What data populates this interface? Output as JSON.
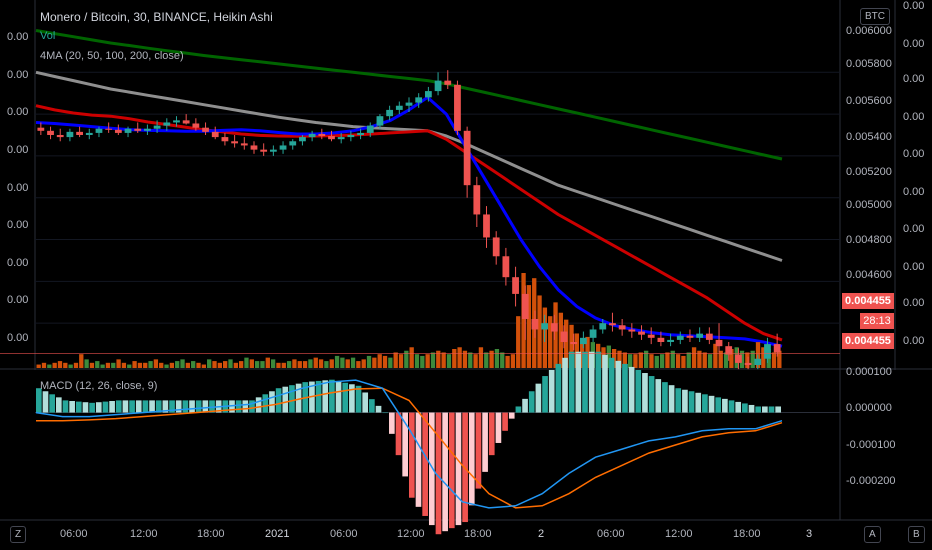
{
  "header": {
    "title": "Monero / Bitcoin, 30, BINANCE, Heikin Ashi",
    "vol_label": "Vol",
    "ma_label": "4MA (20, 50, 100, 200, close)",
    "macd_label": "MACD (12, 26, close, 9)",
    "currency_badge": "BTC"
  },
  "left_axis": {
    "ticks": [
      "0.00",
      "0.00",
      "0.00",
      "0.00",
      "0.00",
      "0.00",
      "0.00",
      "0.00",
      "0.00"
    ]
  },
  "far_right_axis": {
    "ticks": [
      "0.00",
      "0.00",
      "0.00",
      "0.00",
      "0.00",
      "0.00",
      "0.00",
      "0.00",
      "0.00",
      "0.00"
    ]
  },
  "price_axis": {
    "ticks": [
      "0.006000",
      "0.005800",
      "0.005600",
      "0.005400",
      "0.005200",
      "0.005000",
      "0.004800",
      "0.004600"
    ],
    "last_price": "0.004455",
    "countdown": "28:13",
    "bid_price": "0.004455"
  },
  "macd_axis": {
    "ticks": [
      "0.000100",
      "0.000000",
      "-0.000100",
      "-0.000200"
    ]
  },
  "time_axis": {
    "ticks": [
      "06:00",
      "12:00",
      "18:00",
      "2021",
      "06:00",
      "12:00",
      "18:00",
      "2",
      "06:00",
      "12:00",
      "18:00",
      "3"
    ]
  },
  "bottom_buttons": {
    "left": "Z",
    "mid": "A",
    "right": "B"
  },
  "colors": {
    "up": "#26a69a",
    "down": "#ef5350",
    "ma20": "#0000ff",
    "ma50": "#cc0000",
    "ma100": "#8f8f8f",
    "ma200": "#006400",
    "macd_line": "#2196f3",
    "signal_line": "#ff6d00",
    "vol_up": "#3c8a3c",
    "vol_down": "#d2500a"
  },
  "chart_data": {
    "type": "candlestick",
    "candles": [
      {
        "o": 0.005535,
        "h": 0.00556,
        "l": 0.0055,
        "c": 0.00552
      },
      {
        "o": 0.00552,
        "h": 0.00554,
        "l": 0.00548,
        "c": 0.0055
      },
      {
        "o": 0.0055,
        "h": 0.00553,
        "l": 0.00547,
        "c": 0.00549
      },
      {
        "o": 0.00549,
        "h": 0.00553,
        "l": 0.00547,
        "c": 0.005515
      },
      {
        "o": 0.005515,
        "h": 0.00554,
        "l": 0.00549,
        "c": 0.0055
      },
      {
        "o": 0.0055,
        "h": 0.00553,
        "l": 0.00548,
        "c": 0.00551
      },
      {
        "o": 0.00551,
        "h": 0.00554,
        "l": 0.00549,
        "c": 0.00553
      },
      {
        "o": 0.00553,
        "h": 0.00556,
        "l": 0.00551,
        "c": 0.005525
      },
      {
        "o": 0.005525,
        "h": 0.00555,
        "l": 0.0055,
        "c": 0.00551
      },
      {
        "o": 0.00551,
        "h": 0.00554,
        "l": 0.00549,
        "c": 0.00553
      },
      {
        "o": 0.00553,
        "h": 0.00556,
        "l": 0.00551,
        "c": 0.00552
      },
      {
        "o": 0.00552,
        "h": 0.00555,
        "l": 0.0055,
        "c": 0.00553
      },
      {
        "o": 0.00553,
        "h": 0.00557,
        "l": 0.00551,
        "c": 0.005545
      },
      {
        "o": 0.005545,
        "h": 0.00558,
        "l": 0.00552,
        "c": 0.00556
      },
      {
        "o": 0.00556,
        "h": 0.00559,
        "l": 0.00554,
        "c": 0.00557
      },
      {
        "o": 0.00557,
        "h": 0.0056,
        "l": 0.00555,
        "c": 0.005555
      },
      {
        "o": 0.005555,
        "h": 0.00558,
        "l": 0.00552,
        "c": 0.005535
      },
      {
        "o": 0.005535,
        "h": 0.00556,
        "l": 0.0055,
        "c": 0.005515
      },
      {
        "o": 0.005515,
        "h": 0.00554,
        "l": 0.00548,
        "c": 0.00549
      },
      {
        "o": 0.00549,
        "h": 0.00551,
        "l": 0.00545,
        "c": 0.00547
      },
      {
        "o": 0.00547,
        "h": 0.0055,
        "l": 0.00544,
        "c": 0.00546
      },
      {
        "o": 0.00546,
        "h": 0.00549,
        "l": 0.00543,
        "c": 0.00545
      },
      {
        "o": 0.00545,
        "h": 0.00547,
        "l": 0.00541,
        "c": 0.00543
      },
      {
        "o": 0.00543,
        "h": 0.00546,
        "l": 0.0054,
        "c": 0.00542
      },
      {
        "o": 0.00542,
        "h": 0.00545,
        "l": 0.0054,
        "c": 0.00543
      },
      {
        "o": 0.00543,
        "h": 0.00547,
        "l": 0.00541,
        "c": 0.00545
      },
      {
        "o": 0.00545,
        "h": 0.00548,
        "l": 0.00543,
        "c": 0.00547
      },
      {
        "o": 0.00547,
        "h": 0.0055,
        "l": 0.00545,
        "c": 0.00549
      },
      {
        "o": 0.00549,
        "h": 0.00552,
        "l": 0.00547,
        "c": 0.005505
      },
      {
        "o": 0.005505,
        "h": 0.00553,
        "l": 0.00548,
        "c": 0.005495
      },
      {
        "o": 0.005495,
        "h": 0.00552,
        "l": 0.00547,
        "c": 0.00548
      },
      {
        "o": 0.00548,
        "h": 0.00551,
        "l": 0.00546,
        "c": 0.00549
      },
      {
        "o": 0.00549,
        "h": 0.00552,
        "l": 0.00547,
        "c": 0.0055
      },
      {
        "o": 0.0055,
        "h": 0.00553,
        "l": 0.00548,
        "c": 0.00551
      },
      {
        "o": 0.00551,
        "h": 0.00556,
        "l": 0.00549,
        "c": 0.005545
      },
      {
        "o": 0.005545,
        "h": 0.0056,
        "l": 0.00553,
        "c": 0.00559
      },
      {
        "o": 0.00559,
        "h": 0.00564,
        "l": 0.00557,
        "c": 0.00562
      },
      {
        "o": 0.00562,
        "h": 0.00566,
        "l": 0.0056,
        "c": 0.00564
      },
      {
        "o": 0.00564,
        "h": 0.00568,
        "l": 0.00561,
        "c": 0.005655
      },
      {
        "o": 0.005655,
        "h": 0.0057,
        "l": 0.00563,
        "c": 0.00568
      },
      {
        "o": 0.00568,
        "h": 0.00573,
        "l": 0.00566,
        "c": 0.00571
      },
      {
        "o": 0.00571,
        "h": 0.0058,
        "l": 0.00569,
        "c": 0.00576
      },
      {
        "o": 0.00576,
        "h": 0.00581,
        "l": 0.00572,
        "c": 0.00574
      },
      {
        "o": 0.00574,
        "h": 0.00576,
        "l": 0.0055,
        "c": 0.00552
      },
      {
        "o": 0.00552,
        "h": 0.00554,
        "l": 0.0052,
        "c": 0.00526
      },
      {
        "o": 0.00526,
        "h": 0.0053,
        "l": 0.00506,
        "c": 0.00512
      },
      {
        "o": 0.00512,
        "h": 0.00516,
        "l": 0.00496,
        "c": 0.00501
      },
      {
        "o": 0.00501,
        "h": 0.00504,
        "l": 0.00488,
        "c": 0.00492
      },
      {
        "o": 0.00492,
        "h": 0.00496,
        "l": 0.00478,
        "c": 0.00482
      },
      {
        "o": 0.00482,
        "h": 0.00487,
        "l": 0.00468,
        "c": 0.00474
      },
      {
        "o": 0.00474,
        "h": 0.00478,
        "l": 0.00452,
        "c": 0.00462
      },
      {
        "o": 0.00462,
        "h": 0.00466,
        "l": 0.00453,
        "c": 0.00457
      },
      {
        "o": 0.00457,
        "h": 0.00464,
        "l": 0.00451,
        "c": 0.0046
      },
      {
        "o": 0.0046,
        "h": 0.00464,
        "l": 0.00452,
        "c": 0.00456
      },
      {
        "o": 0.00456,
        "h": 0.00459,
        "l": 0.00448,
        "c": 0.00451
      },
      {
        "o": 0.00451,
        "h": 0.00455,
        "l": 0.00447,
        "c": 0.0045
      },
      {
        "o": 0.0045,
        "h": 0.00456,
        "l": 0.00448,
        "c": 0.00453
      },
      {
        "o": 0.00453,
        "h": 0.00459,
        "l": 0.00451,
        "c": 0.00457
      },
      {
        "o": 0.00457,
        "h": 0.00462,
        "l": 0.00455,
        "c": 0.0046
      },
      {
        "o": 0.0046,
        "h": 0.00465,
        "l": 0.00456,
        "c": 0.00459
      },
      {
        "o": 0.00459,
        "h": 0.00462,
        "l": 0.00454,
        "c": 0.00457
      },
      {
        "o": 0.00457,
        "h": 0.0046,
        "l": 0.00453,
        "c": 0.00456
      },
      {
        "o": 0.00456,
        "h": 0.00459,
        "l": 0.00452,
        "c": 0.004545
      },
      {
        "o": 0.004545,
        "h": 0.00458,
        "l": 0.0045,
        "c": 0.00453
      },
      {
        "o": 0.00453,
        "h": 0.00456,
        "l": 0.00449,
        "c": 0.00451
      },
      {
        "o": 0.00451,
        "h": 0.00455,
        "l": 0.00449,
        "c": 0.00452
      },
      {
        "o": 0.00452,
        "h": 0.00456,
        "l": 0.0045,
        "c": 0.00454
      },
      {
        "o": 0.00454,
        "h": 0.00457,
        "l": 0.00451,
        "c": 0.00453
      },
      {
        "o": 0.00453,
        "h": 0.00458,
        "l": 0.00451,
        "c": 0.00455
      },
      {
        "o": 0.00455,
        "h": 0.00458,
        "l": 0.0045,
        "c": 0.00452
      },
      {
        "o": 0.00452,
        "h": 0.0046,
        "l": 0.00446,
        "c": 0.00449
      },
      {
        "o": 0.00449,
        "h": 0.00451,
        "l": 0.00442,
        "c": 0.00445
      },
      {
        "o": 0.00445,
        "h": 0.00448,
        "l": 0.00438,
        "c": 0.00441
      },
      {
        "o": 0.00441,
        "h": 0.00444,
        "l": 0.00438,
        "c": 0.0044
      },
      {
        "o": 0.0044,
        "h": 0.00445,
        "l": 0.00438,
        "c": 0.00443
      },
      {
        "o": 0.00443,
        "h": 0.00453,
        "l": 0.00441,
        "c": 0.0045
      },
      {
        "o": 0.0045,
        "h": 0.00455,
        "l": 0.00444,
        "c": 0.00446
      }
    ],
    "ma20": [
      0.00556,
      0.005555,
      0.005548,
      0.00554,
      0.005532,
      0.005526,
      0.005522,
      0.00552,
      0.005518,
      0.005518,
      0.005522,
      0.005525,
      0.00552,
      0.005512,
      0.005505,
      0.005505,
      0.00551,
      0.00552,
      0.00554,
      0.00557,
      0.00562,
      0.00568,
      0.0056,
      0.00545,
      0.0053,
      0.00515,
      0.005,
      0.00487,
      0.00476,
      0.00468,
      0.004625,
      0.00459,
      0.00457,
      0.004555,
      0.004545,
      0.00454,
      0.004535,
      0.00453,
      0.004525,
      0.00451,
      0.00449
    ],
    "ma50": [
      0.00564,
      0.00562,
      0.005605,
      0.005595,
      0.00559,
      0.005578,
      0.005562,
      0.00555,
      0.005538,
      0.005525,
      0.005515,
      0.005505,
      0.005498,
      0.005495,
      0.005494,
      0.005495,
      0.005497,
      0.0055,
      0.005505,
      0.00551,
      0.005515,
      0.00552,
      0.00548,
      0.00542,
      0.00536,
      0.0053,
      0.00524,
      0.00518,
      0.00512,
      0.00507,
      0.00502,
      0.00497,
      0.00492,
      0.00487,
      0.00482,
      0.00477,
      0.00472,
      0.00466,
      0.0046,
      0.00455,
      0.00452
    ],
    "ma100": [
      0.0058,
      0.00578,
      0.00576,
      0.00574,
      0.00572,
      0.005705,
      0.00569,
      0.005675,
      0.00566,
      0.005645,
      0.00563,
      0.005615,
      0.0056,
      0.005585,
      0.005572,
      0.00556,
      0.00555,
      0.00554,
      0.005535,
      0.00553,
      0.005525,
      0.00552,
      0.005495,
      0.00546,
      0.00542,
      0.00538,
      0.00534,
      0.0053,
      0.00526,
      0.00523,
      0.0052,
      0.00517,
      0.00514,
      0.00511,
      0.00508,
      0.00505,
      0.00502,
      0.00499,
      0.00496,
      0.00493,
      0.0049
    ],
    "ma200": [
      0.006,
      0.005985,
      0.00597,
      0.005955,
      0.00594,
      0.005928,
      0.005915,
      0.005903,
      0.005892,
      0.00588,
      0.00587,
      0.00586,
      0.00585,
      0.00584,
      0.00583,
      0.00582,
      0.00581,
      0.0058,
      0.00579,
      0.00578,
      0.00577,
      0.00576,
      0.005745,
      0.005725,
      0.005705,
      0.005685,
      0.005665,
      0.005645,
      0.005625,
      0.005605,
      0.005585,
      0.005565,
      0.005545,
      0.005525,
      0.005505,
      0.005485,
      0.005465,
      0.005445,
      0.005425,
      0.005405,
      0.005385
    ],
    "volume": [
      2,
      3,
      2,
      3,
      4,
      3,
      2,
      3,
      8,
      5,
      3,
      4,
      2,
      3,
      3,
      5,
      3,
      2,
      4,
      3,
      3,
      4,
      5,
      3,
      2,
      3,
      4,
      5,
      3,
      4,
      3,
      2,
      5,
      4,
      3,
      4,
      5,
      3,
      4,
      6,
      5,
      4,
      4,
      6,
      5,
      3,
      3,
      4,
      5,
      4,
      4,
      5,
      6,
      5,
      4,
      5,
      7,
      6,
      5,
      6,
      4,
      5,
      7,
      6,
      8,
      7,
      6,
      9,
      8,
      10,
      12,
      8,
      7,
      8,
      9,
      10,
      9,
      8,
      11,
      12,
      10,
      9,
      8,
      12,
      9,
      10,
      11,
      9,
      7,
      8,
      30,
      55,
      48,
      52,
      42,
      35,
      30,
      38,
      32,
      28,
      25,
      20,
      17,
      18,
      15,
      14,
      12,
      13,
      11,
      10,
      9,
      8,
      8,
      9,
      10,
      8,
      7,
      8,
      9,
      10,
      8,
      7,
      9,
      12,
      10,
      9,
      8,
      14,
      10,
      9,
      11,
      12,
      10,
      9,
      10,
      15,
      12,
      11,
      9,
      10
    ],
    "macd": [
      0.0,
      -1e-05,
      -1e-05,
      -5e-06,
      0.0,
      5e-06,
      1e-05,
      1.5e-05,
      2e-05,
      4e-05,
      6e-05,
      7.5e-05,
      8e-05,
      6e-05,
      -4e-05,
      -0.00015,
      -0.00022,
      -0.000235,
      -0.00023,
      -0.0002,
      -0.00015,
      -0.00011,
      -9e-05,
      -7e-05,
      -6e-05,
      -4.5e-05,
      -4e-05,
      -4e-05,
      -2e-05
    ],
    "signal": [
      -2e-05,
      -2e-05,
      -1.8e-05,
      -1.5e-05,
      -1e-05,
      -5e-06,
      0.0,
      5e-06,
      1e-05,
      2e-05,
      3.5e-05,
      4.8e-05,
      5.8e-05,
      6e-05,
      3e-05,
      -5e-05,
      -0.00013,
      -0.0002,
      -0.000235,
      -0.00023,
      -0.0002,
      -0.00016,
      -0.00013,
      -0.0001,
      -8e-05,
      -6e-05,
      -5e-05,
      -4.5e-05,
      -2.5e-05
    ],
    "price_ylim": [
      0.0044,
      0.00605
    ],
    "macd_ylim": [
      -0.00026,
      0.0001
    ],
    "last_price": 0.004455
  }
}
